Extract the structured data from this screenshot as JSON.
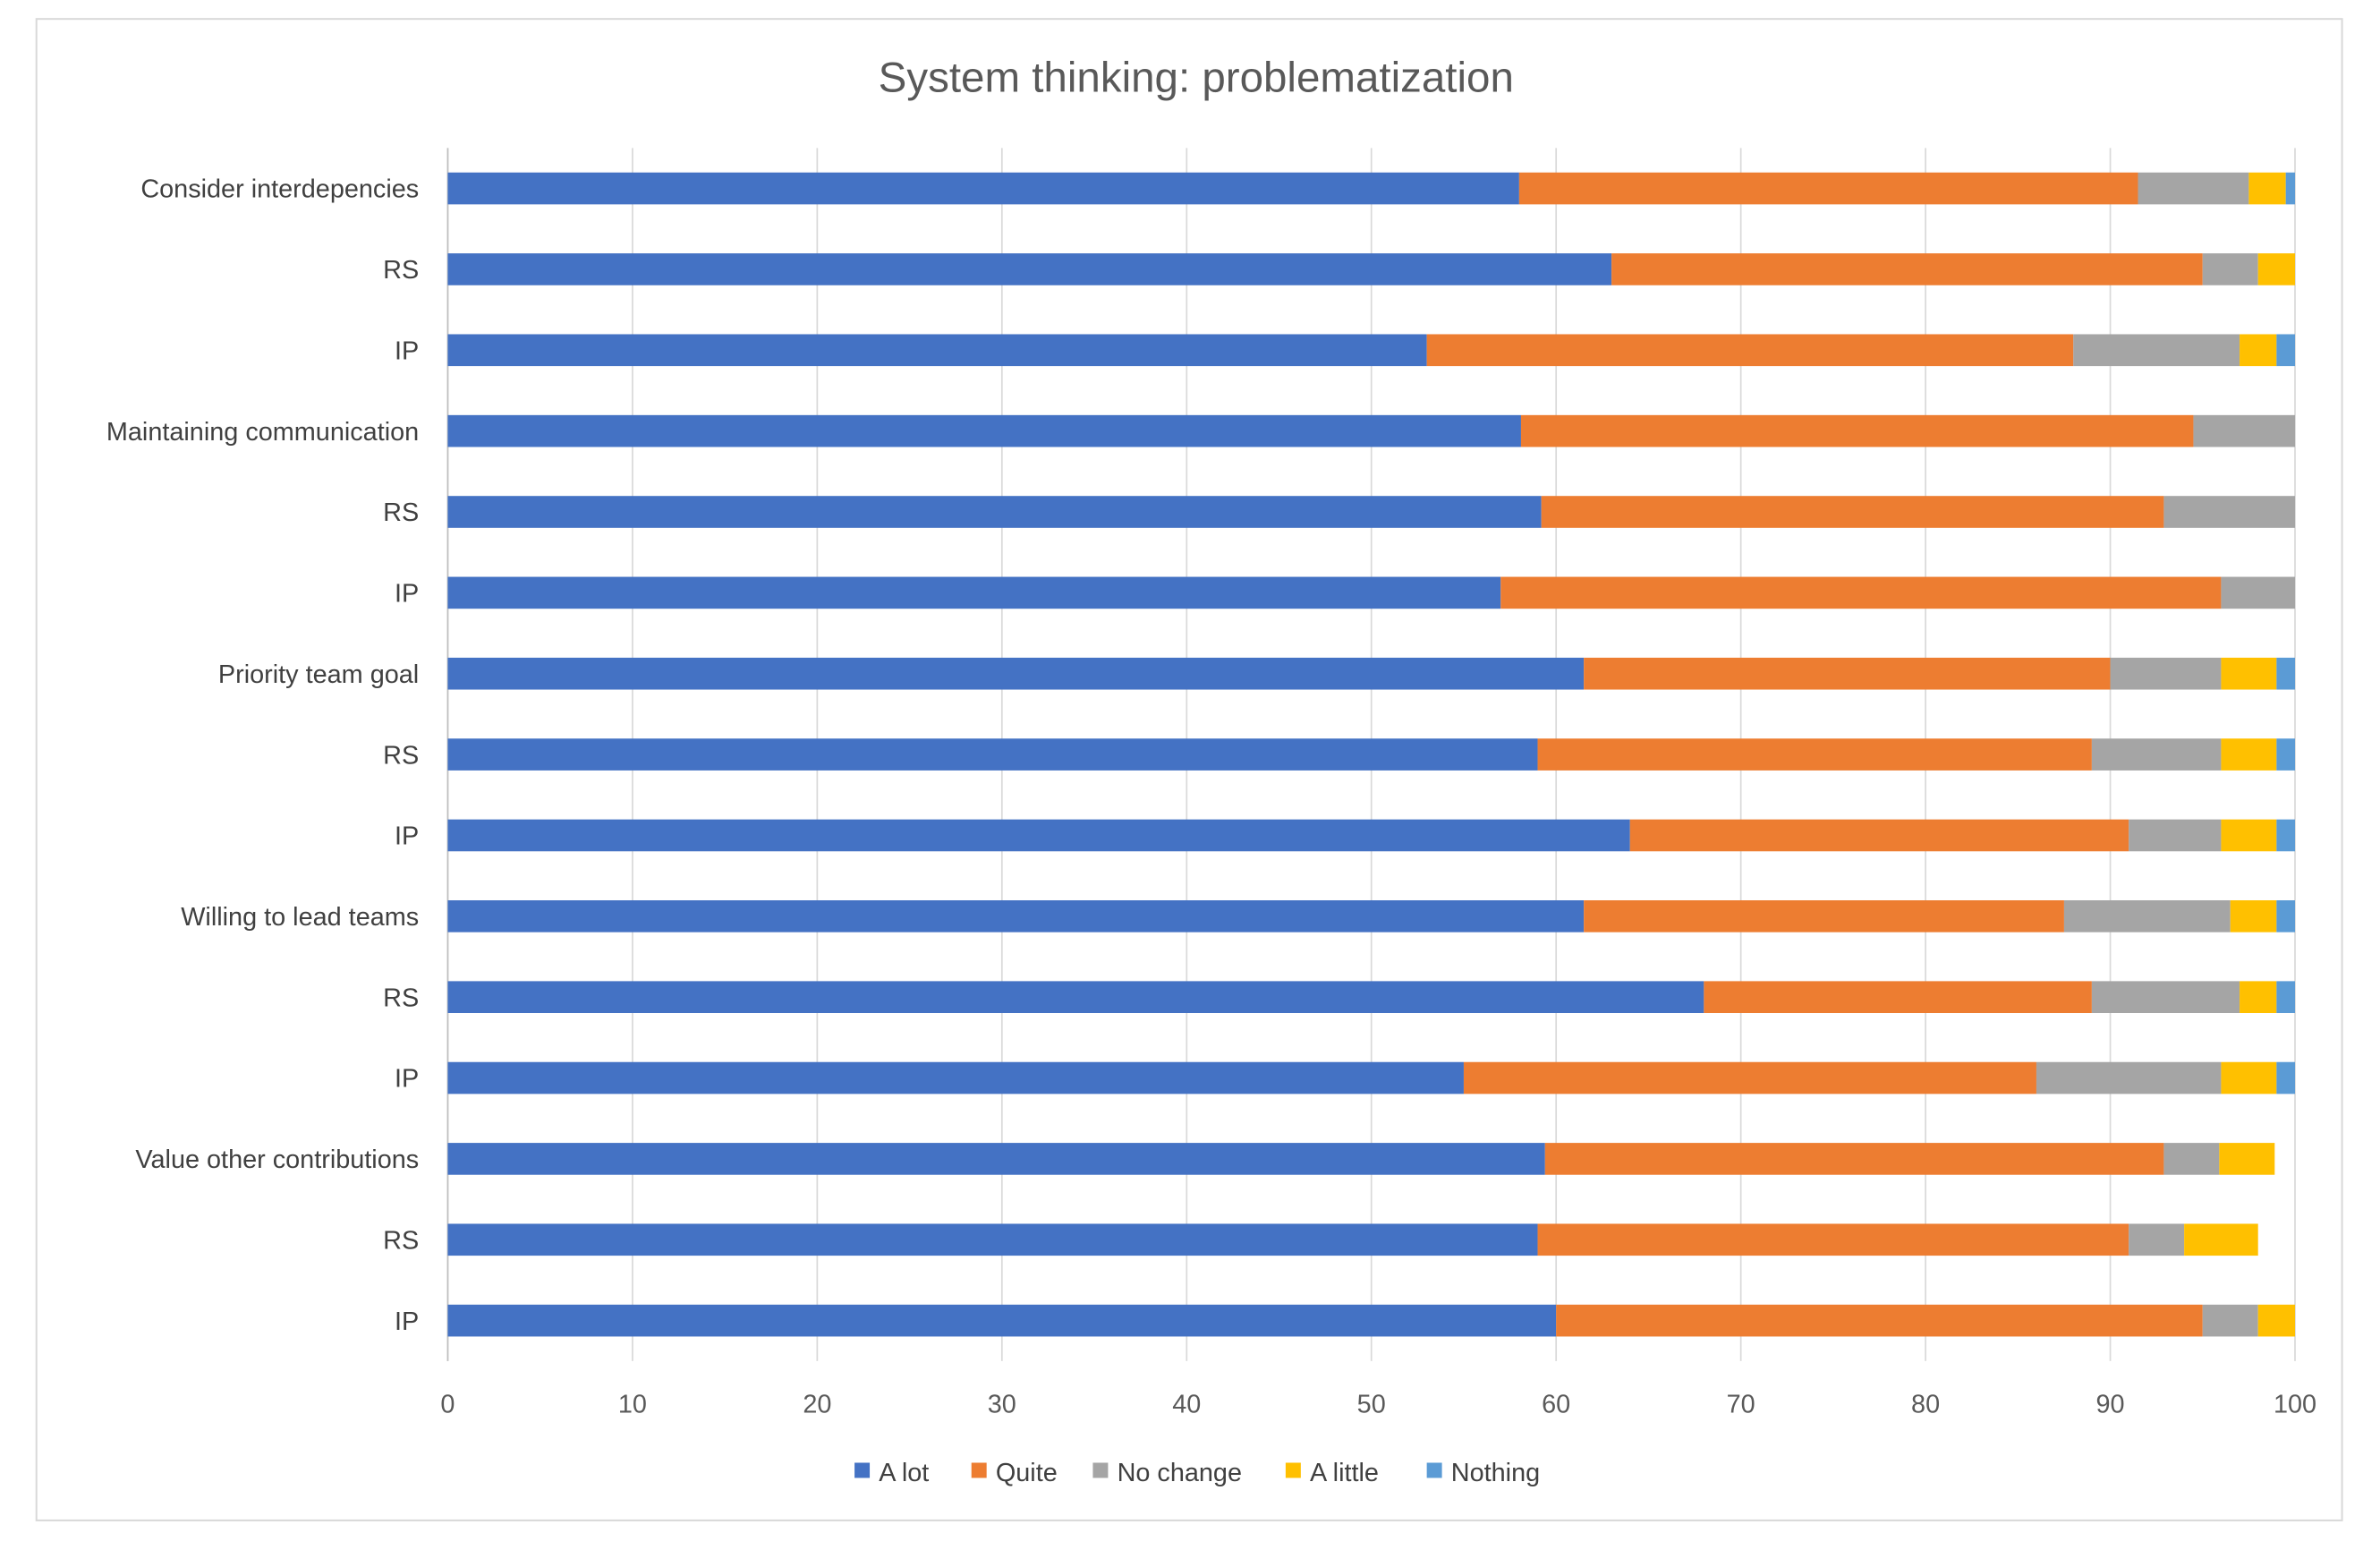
{
  "chart_data": {
    "type": "bar",
    "orientation": "horizontal",
    "stacked": true,
    "title": "System thinking: problematization",
    "xlabel": "",
    "ylabel": "",
    "xlim": [
      0,
      100
    ],
    "xticks": [
      0,
      10,
      20,
      30,
      40,
      50,
      60,
      70,
      80,
      90,
      100
    ],
    "grid": true,
    "legend_position": "bottom",
    "categories": [
      "Consider interdepencies",
      "RS",
      "IP",
      "Maintaining communication",
      "RS",
      "IP",
      "Priority team goal",
      "RS",
      "IP",
      "Willing to lead teams",
      "RS",
      "IP",
      "Value other contributions",
      "RS",
      "IP"
    ],
    "series": [
      {
        "name": "A lot",
        "color": "#4472C4",
        "values": [
          58,
          63,
          53,
          58.1,
          59.2,
          57,
          61.5,
          59,
          64,
          61.5,
          68,
          55,
          59.4,
          59,
          60
        ]
      },
      {
        "name": "Quite",
        "color": "#ED7D31",
        "values": [
          33.5,
          32,
          35,
          36.4,
          33.7,
          39,
          28.5,
          30,
          27,
          26,
          21,
          31,
          33.5,
          32,
          35
        ]
      },
      {
        "name": "No change",
        "color": "#A5A5A5",
        "values": [
          6,
          3,
          9,
          5.5,
          7.1,
          4,
          6,
          7,
          5,
          9,
          8,
          10,
          3,
          3,
          3
        ]
      },
      {
        "name": "A little",
        "color": "#FFC000",
        "values": [
          2,
          2,
          2,
          0,
          0,
          0,
          3,
          3,
          3,
          2.5,
          2,
          3,
          3,
          4,
          2
        ]
      },
      {
        "name": "Nothing",
        "color": "#5B9BD5",
        "values": [
          0.5,
          0,
          1,
          0,
          0,
          0,
          1,
          1,
          1,
          1,
          1,
          1,
          0,
          0,
          0
        ]
      }
    ]
  }
}
